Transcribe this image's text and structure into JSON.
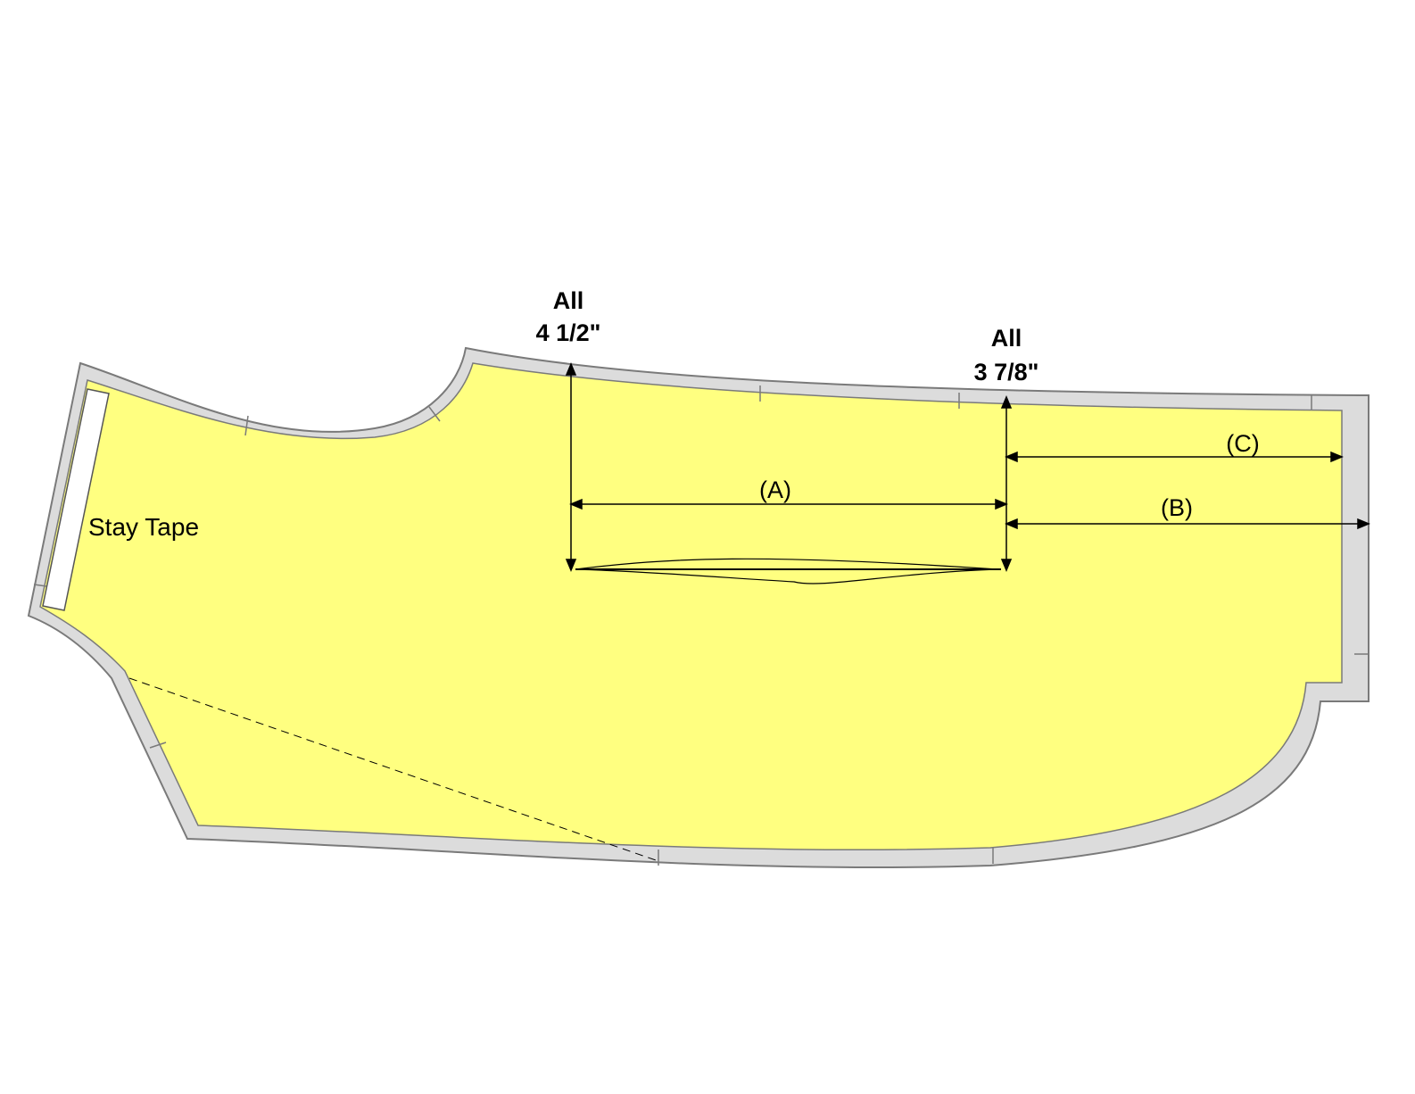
{
  "labels": {
    "stay_tape": "Stay Tape",
    "dim_left_title": "All",
    "dim_left_value": "4 1/2\"",
    "dim_right_title": "All",
    "dim_right_value": "3 7/8\"",
    "measure_a": "(A)",
    "measure_b": "(B)",
    "measure_c": "(C)"
  },
  "colors": {
    "fabric_fill": "#ffff80",
    "seam_allowance": "#dcdcdc",
    "outline": "#7a7a7a",
    "lines": "#000000"
  }
}
